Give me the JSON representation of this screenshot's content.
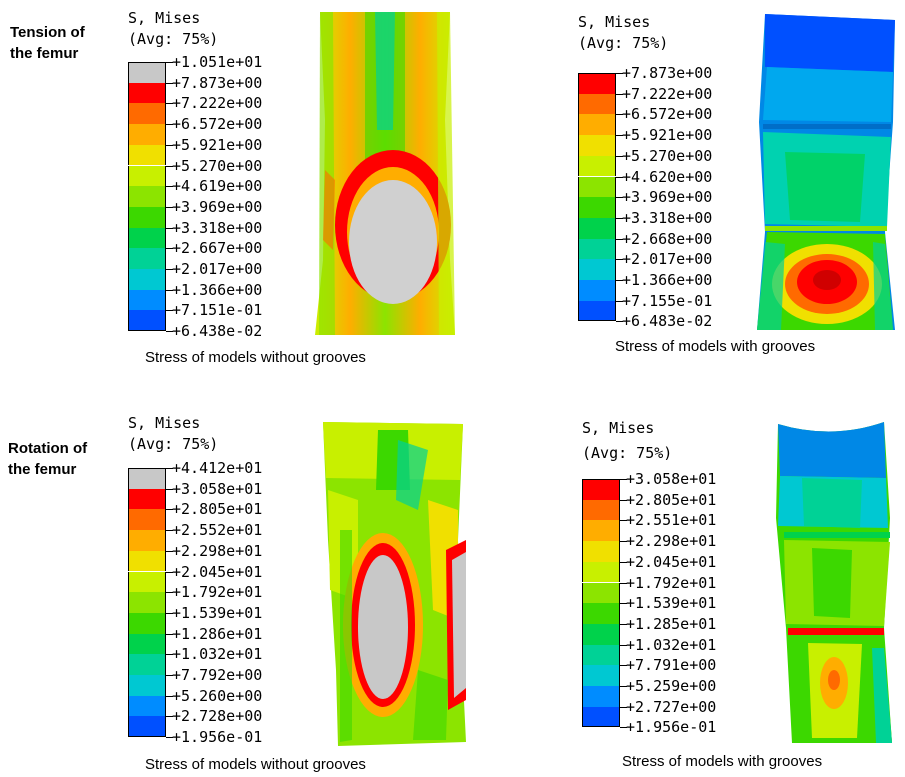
{
  "row_labels": {
    "tension": "Tension of\nthe femur",
    "rotation": "Rotation of\nthe femur"
  },
  "panels": [
    {
      "id": "tension-no-grooves",
      "title_line1": "S, Mises",
      "title_line2": "(Avg: 75%)",
      "legend_values": [
        "+1.051e+01",
        "+7.873e+00",
        "+7.222e+00",
        "+6.572e+00",
        "+5.921e+00",
        "+5.270e+00",
        "+4.619e+00",
        "+3.969e+00",
        "+3.318e+00",
        "+2.667e+00",
        "+2.017e+00",
        "+1.366e+00",
        "+7.151e-01",
        "+6.438e-02"
      ],
      "legend_colors": [
        "#c8c8c8",
        "#ff0000",
        "#ff6a00",
        "#ffad00",
        "#f0e000",
        "#c8f000",
        "#8ce400",
        "#3cd800",
        "#00d24b",
        "#00d296",
        "#00c8d2",
        "#008cff",
        "#0050ff",
        "#0000ff"
      ],
      "caption": "Stress of models without grooves"
    },
    {
      "id": "tension-with-grooves",
      "title_line1": "S, Mises",
      "title_line2": "(Avg: 75%)",
      "legend_values": [
        "+7.873e+00",
        "+7.222e+00",
        "+6.572e+00",
        "+5.921e+00",
        "+5.270e+00",
        "+4.620e+00",
        "+3.969e+00",
        "+3.318e+00",
        "+2.668e+00",
        "+2.017e+00",
        "+1.366e+00",
        "+7.155e-01",
        "+6.483e-02"
      ],
      "legend_colors": [
        "#ff0000",
        "#ff6a00",
        "#ffad00",
        "#f0e000",
        "#c8f000",
        "#8ce400",
        "#3cd800",
        "#00d24b",
        "#00d296",
        "#00c8d2",
        "#008cff",
        "#0050ff",
        "#0000ff"
      ],
      "caption": "Stress of models with grooves"
    },
    {
      "id": "rotation-no-grooves",
      "title_line1": "S, Mises",
      "title_line2": "(Avg: 75%)",
      "legend_values": [
        "+4.412e+01",
        "+3.058e+01",
        "+2.805e+01",
        "+2.552e+01",
        "+2.298e+01",
        "+2.045e+01",
        "+1.792e+01",
        "+1.539e+01",
        "+1.286e+01",
        "+1.032e+01",
        "+7.792e+00",
        "+5.260e+00",
        "+2.728e+00",
        "+1.956e-01"
      ],
      "legend_colors": [
        "#c8c8c8",
        "#ff0000",
        "#ff6a00",
        "#ffad00",
        "#f0e000",
        "#c8f000",
        "#8ce400",
        "#3cd800",
        "#00d24b",
        "#00d296",
        "#00c8d2",
        "#008cff",
        "#0050ff",
        "#0000ff"
      ],
      "caption": "Stress of models without grooves"
    },
    {
      "id": "rotation-with-grooves",
      "title_line1": "S, Mises",
      "title_line2": "(Avg: 75%)",
      "legend_values": [
        "+3.058e+01",
        "+2.805e+01",
        "+2.551e+01",
        "+2.298e+01",
        "+2.045e+01",
        "+1.792e+01",
        "+1.539e+01",
        "+1.285e+01",
        "+1.032e+01",
        "+7.791e+00",
        "+5.259e+00",
        "+2.727e+00",
        "+1.956e-01"
      ],
      "legend_colors": [
        "#ff0000",
        "#ff6a00",
        "#ffad00",
        "#f0e000",
        "#c8f000",
        "#8ce400",
        "#3cd800",
        "#00d24b",
        "#00d296",
        "#00c8d2",
        "#008cff",
        "#0050ff",
        "#0000ff"
      ],
      "caption": "Stress of models with grooves"
    }
  ]
}
